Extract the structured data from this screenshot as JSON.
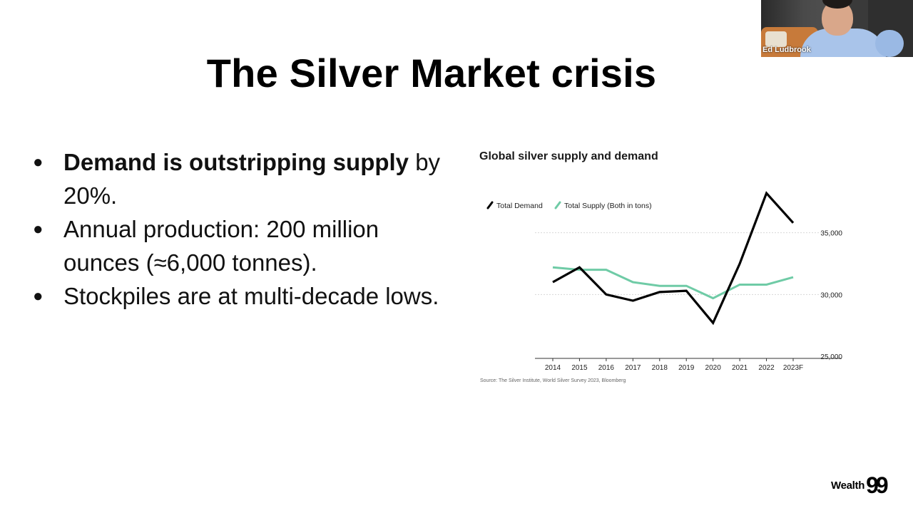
{
  "slide": {
    "title": "The Silver Market crisis",
    "bullets": [
      {
        "bold": "Demand is outstripping supply",
        "rest": " by 20%."
      },
      {
        "bold": "",
        "rest": "Annual production: 200 million ounces (≈6,000 tonnes)."
      },
      {
        "bold": "",
        "rest": "Stockpiles are at multi-decade lows."
      }
    ],
    "bullet_symbol": "●"
  },
  "chart_data": {
    "type": "line",
    "title": "Global silver supply and demand",
    "categories": [
      "2014",
      "2015",
      "2016",
      "2017",
      "2018",
      "2019",
      "2020",
      "2021",
      "2022",
      "2023F"
    ],
    "series": [
      {
        "name": "Total Demand",
        "color": "#000000",
        "values": [
          31000,
          32200,
          30000,
          29500,
          30200,
          30300,
          27700,
          32500,
          38200,
          35800
        ]
      },
      {
        "name": "Total Supply (Both in tons)",
        "color": "#6fcba6",
        "values": [
          32200,
          32000,
          32000,
          31000,
          30700,
          30700,
          29700,
          30800,
          30800,
          31400
        ]
      }
    ],
    "y_ticks": [
      "35,000",
      "30,000",
      "25,000"
    ],
    "y_tick_values": [
      35000,
      30000,
      25000
    ],
    "ylim": [
      25000,
      40000
    ],
    "grid": true,
    "legend_position": "top-left",
    "source": "Source: The Silver Institute, World Silver Survey 2023, Bloomberg"
  },
  "video": {
    "participant_name": "Ed Ludbrook"
  },
  "brand": {
    "logo_text": "Wealth",
    "logo_number": "99"
  }
}
